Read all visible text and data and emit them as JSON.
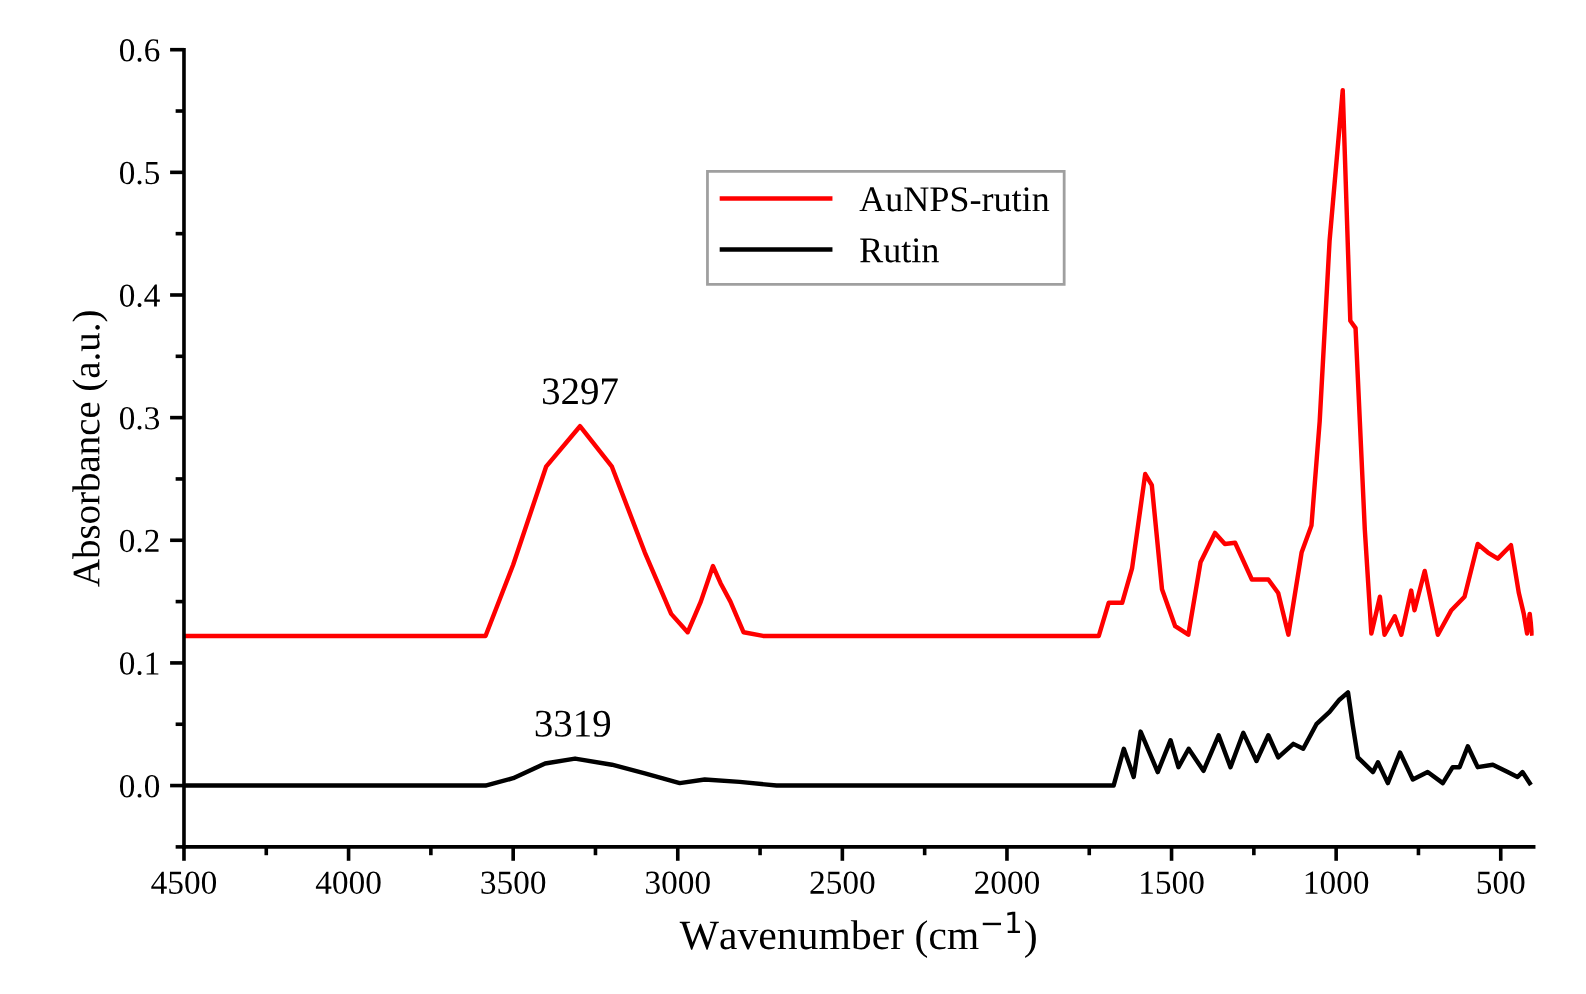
{
  "chart_data": {
    "type": "line",
    "xlabel": "Wavenumber (cm$^{−1}$)",
    "ylabel": "Absorbance (a.u.)",
    "xlim": [
      4500,
      400
    ],
    "xticks": [
      4500,
      4000,
      3500,
      3000,
      2500,
      2000,
      1500,
      1000,
      500
    ],
    "ylim": [
      -0.05,
      0.6
    ],
    "yticks": [
      {
        "value": 0,
        "label": "0.0"
      },
      0.1,
      0.2,
      0.3,
      0.4,
      0.5,
      0.6
    ],
    "grid": false,
    "legend": "top",
    "marker": "none",
    "line_style": "solid",
    "annotations": [
      {
        "text": "3297",
        "x": 3297,
        "y": 0.293
      },
      {
        "text": "3319",
        "x": 3319,
        "y": 0.022
      }
    ],
    "series": [
      {
        "name": "AuNPS-rutin",
        "color": "#ff0000",
        "x": [
          4500,
          3584,
          3500,
          3400,
          3297,
          3200,
          3100,
          3020,
          2970,
          2930,
          2893,
          2870,
          2840,
          2800,
          2741,
          1721,
          1691,
          1650,
          1620,
          1580,
          1560,
          1529,
          1489,
          1449,
          1412,
          1368,
          1338,
          1307,
          1256,
          1206,
          1176,
          1145,
          1105,
          1075,
          1050,
          1020,
          980,
          957,
          941,
          913,
          893,
          867,
          853,
          822,
          802,
          772,
          762,
          731,
          691,
          650,
          610,
          570,
          539,
          509,
          469,
          445,
          430,
          420,
          412,
          405
        ],
        "values": [
          0.122,
          0.122,
          0.18,
          0.26,
          0.293,
          0.26,
          0.19,
          0.14,
          0.125,
          0.15,
          0.179,
          0.165,
          0.15,
          0.125,
          0.122,
          0.122,
          0.149,
          0.149,
          0.177,
          0.254,
          0.245,
          0.16,
          0.13,
          0.123,
          0.182,
          0.206,
          0.197,
          0.198,
          0.168,
          0.168,
          0.157,
          0.123,
          0.19,
          0.212,
          0.297,
          0.444,
          0.567,
          0.379,
          0.373,
          0.209,
          0.124,
          0.154,
          0.123,
          0.138,
          0.123,
          0.159,
          0.143,
          0.175,
          0.123,
          0.143,
          0.154,
          0.197,
          0.19,
          0.185,
          0.196,
          0.157,
          0.14,
          0.124,
          0.14,
          0.124
        ]
      },
      {
        "name": "Rutin",
        "color": "#000000",
        "x": [
          4500,
          3584,
          3500,
          3403,
          3312,
          3200,
          3100,
          2994,
          2918,
          2812,
          2700,
          1676,
          1645,
          1615,
          1594,
          1542,
          1503,
          1479,
          1448,
          1403,
          1357,
          1321,
          1282,
          1242,
          1206,
          1176,
          1130,
          1100,
          1060,
          1020,
          990,
          964,
          950,
          934,
          888,
          873,
          843,
          806,
          767,
          722,
          676,
          646,
          625,
          600,
          570,
          524,
          479,
          449,
          434,
          412
        ],
        "values": [
          0,
          0,
          0.006,
          0.018,
          0.022,
          0.017,
          0.01,
          0.002,
          0.005,
          0.003,
          0,
          0,
          0.03,
          0.007,
          0.044,
          0.011,
          0.037,
          0.015,
          0.03,
          0.012,
          0.041,
          0.015,
          0.043,
          0.02,
          0.041,
          0.023,
          0.034,
          0.03,
          0.05,
          0.06,
          0.07,
          0.076,
          0.05,
          0.023,
          0.011,
          0.019,
          0.002,
          0.027,
          0.005,
          0.011,
          0.002,
          0.015,
          0.015,
          0.032,
          0.015,
          0.017,
          0.011,
          0.007,
          0.011,
          0.002
        ]
      }
    ]
  }
}
